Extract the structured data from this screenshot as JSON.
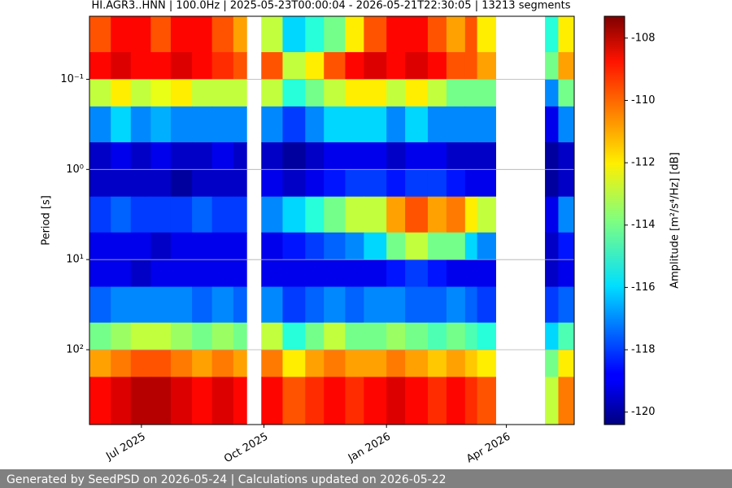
{
  "chart_data": {
    "type": "heatmap",
    "title": "HI.AGR3..HNN | 100.0Hz | 2025-05-23T00:00:04 - 2026-05-21T22:30:05 | 13213 segments",
    "y_label": "Period [s]",
    "colorbar_label": "Amplitude [m²/s⁴/Hz] [dB]",
    "colormap": "jet",
    "ylog": true,
    "y_inverted": true,
    "grid": true,
    "xlim": [
      "2025-05-23T00:00:04",
      "2026-05-21T22:30:05"
    ],
    "xticks": [
      {
        "value": "2025-07",
        "label": "Jul 2025"
      },
      {
        "value": "2025-10",
        "label": "Oct 2025"
      },
      {
        "value": "2026-01",
        "label": "Jan 2026"
      },
      {
        "value": "2026-04",
        "label": "Apr 2026"
      }
    ],
    "ylim": [
      0.02,
      676
    ],
    "yticks": [
      {
        "value": 0.1,
        "label": "10⁻¹"
      },
      {
        "value": 1,
        "label": "10⁰"
      },
      {
        "value": 10,
        "label": "10¹"
      },
      {
        "value": 100,
        "label": "10²"
      }
    ],
    "clim": [
      -120.4,
      -107.3
    ],
    "cticks": [
      -108,
      -110,
      -112,
      -114,
      -116,
      -118,
      -120
    ],
    "x_edges": [
      "2025-05-23T00:00:04",
      "2025-06-08",
      "2025-06-23",
      "2025-07-08",
      "2025-07-23",
      "2025-08-08",
      "2025-08-23",
      "2025-09-08",
      "2025-09-18",
      "2025-09-29",
      "2025-10-15",
      "2025-11-01",
      "2025-11-15",
      "2025-12-01",
      "2025-12-15",
      "2026-01-01",
      "2026-01-15",
      "2026-02-01",
      "2026-02-15",
      "2026-03-01",
      "2026-03-10",
      "2026-03-24",
      "2026-04-30",
      "2026-05-10",
      "2026-05-21T22:30:05"
    ],
    "y_edges": [
      0.02,
      0.05,
      0.1,
      0.2,
      0.5,
      1,
      2,
      5,
      10,
      20,
      50,
      100,
      200,
      676
    ],
    "z": [
      [
        -110,
        -109,
        -109,
        -110,
        -109,
        -109,
        -110,
        -111,
        null,
        -113,
        -116,
        -115,
        -114,
        -112,
        -110,
        -109,
        -109,
        -110,
        -111,
        -110,
        -112,
        null,
        -115,
        -112
      ],
      [
        -109,
        -108.5,
        -109,
        -109,
        -108.5,
        -109,
        -109.5,
        -110,
        null,
        -110,
        -113,
        -112,
        -110,
        -109,
        -108.5,
        -109,
        -108.5,
        -109,
        -110,
        -110,
        -111,
        null,
        -114,
        -111
      ],
      [
        -113,
        -112,
        -113,
        -112.5,
        -112,
        -113,
        -113,
        -113,
        null,
        -113,
        -115,
        -114,
        -113,
        -112,
        -112,
        -113,
        -112,
        -113,
        -114,
        -114,
        -114,
        null,
        -117,
        -114
      ],
      [
        -117,
        -116,
        -117,
        -116.5,
        -117,
        -117,
        -117,
        -117,
        null,
        -117,
        -118,
        -117,
        -116,
        -116,
        -116,
        -117,
        -116,
        -117,
        -117,
        -117,
        -117,
        null,
        -119,
        -117
      ],
      [
        -119.5,
        -119,
        -119.5,
        -119,
        -119.5,
        -119.5,
        -119,
        -119.5,
        null,
        -119.5,
        -120,
        -119.5,
        -119,
        -119,
        -119,
        -119.5,
        -119,
        -119,
        -119.5,
        -119.5,
        -119.5,
        null,
        -120,
        -119.5
      ],
      [
        -119.5,
        -119.5,
        -119.5,
        -119.5,
        -120,
        -119.5,
        -119.5,
        -119.5,
        null,
        -119,
        -119.5,
        -119,
        -118.5,
        -118,
        -118,
        -118.5,
        -118,
        -118,
        -118.5,
        -119,
        -119,
        null,
        -120,
        -119.5
      ],
      [
        -118,
        -117.5,
        -118,
        -118,
        -118,
        -117.5,
        -118,
        -118,
        null,
        -117,
        -116,
        -115,
        -114,
        -113,
        -113,
        -111,
        -110,
        -111,
        -110.5,
        -112,
        -113,
        null,
        -119,
        -117
      ],
      [
        -119,
        -119,
        -119,
        -119.5,
        -119,
        -119,
        -119,
        -119,
        null,
        -119,
        -118.5,
        -118,
        -117.5,
        -117,
        -116,
        -114,
        -113,
        -114,
        -114,
        -116,
        -117,
        null,
        -119.5,
        -118.5
      ],
      [
        -119,
        -119,
        -119.5,
        -119,
        -119,
        -119,
        -119,
        -119,
        null,
        -119,
        -119,
        -119,
        -119,
        -119,
        -119,
        -118.5,
        -118,
        -118.5,
        -119,
        -119,
        -119,
        null,
        -119.5,
        -119
      ],
      [
        -117.5,
        -117,
        -117,
        -117,
        -117,
        -117.5,
        -117,
        -117.5,
        null,
        -117,
        -118,
        -117.5,
        -117,
        -117.5,
        -117,
        -117,
        -117.5,
        -117.5,
        -117,
        -117.5,
        -118,
        null,
        -118,
        -117.5
      ],
      [
        -114,
        -113.5,
        -113,
        -113,
        -113.5,
        -114,
        -113.5,
        -114,
        null,
        -113,
        -115,
        -114,
        -113,
        -114,
        -114,
        -113.5,
        -114,
        -114.5,
        -114,
        -114.5,
        -115,
        null,
        -116,
        -114.5
      ],
      [
        -111,
        -110.5,
        -110,
        -110,
        -110.5,
        -111,
        -110.5,
        -111,
        null,
        -110.5,
        -112,
        -111,
        -110.5,
        -111,
        -111,
        -110.5,
        -111,
        -111.5,
        -111,
        -111.5,
        -112,
        null,
        -114,
        -112
      ],
      [
        -109,
        -108.5,
        -108,
        -108,
        -108.5,
        -109,
        -108.5,
        -109,
        null,
        -109,
        -110,
        -109.5,
        -109,
        -109.5,
        -109,
        -108.5,
        -109,
        -109.5,
        -109,
        -109.5,
        -110,
        null,
        -113,
        -110.5
      ]
    ]
  },
  "footer": {
    "text": "Generated by SeedPSD on 2026-05-24 | Calculations updated on 2026-05-22"
  }
}
